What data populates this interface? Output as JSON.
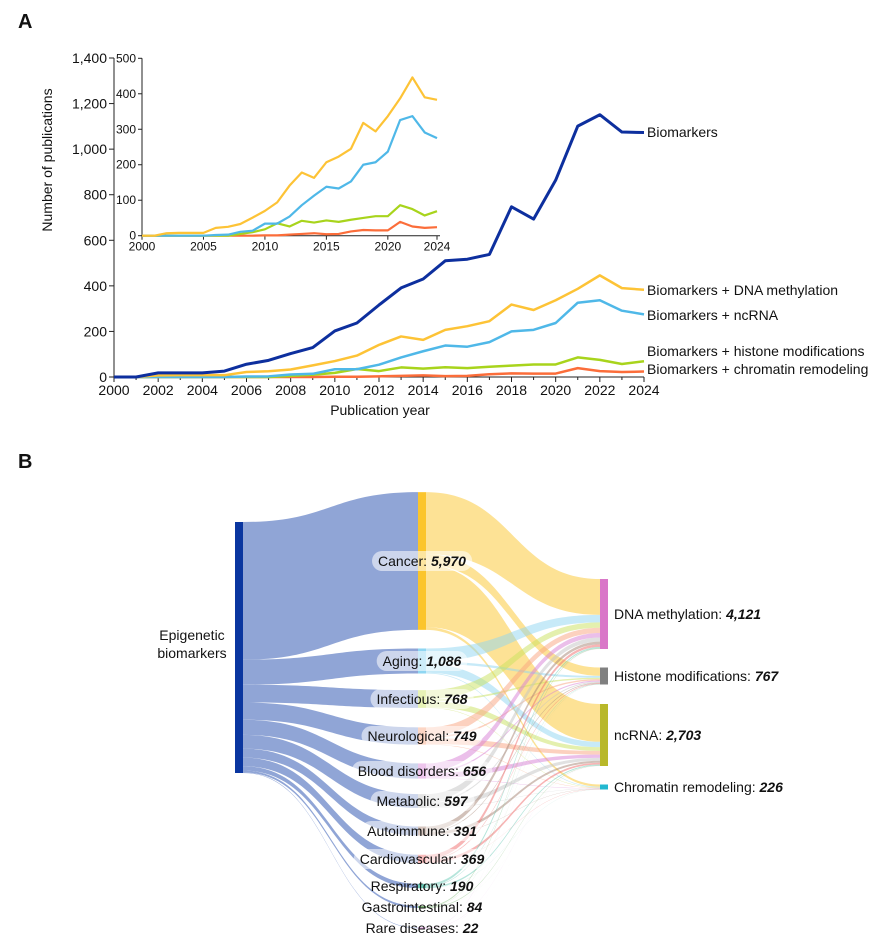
{
  "panels": {
    "a": "A",
    "b": "B"
  },
  "chart_data": [
    {
      "type": "line",
      "panel": "A",
      "xlabel": "Publication year",
      "ylabel": "Number of publications",
      "xlim": [
        2000,
        2024
      ],
      "ylim": [
        0,
        1400
      ],
      "x_ticks": [
        2000,
        2002,
        2004,
        2006,
        2008,
        2010,
        2012,
        2014,
        2016,
        2018,
        2020,
        2022,
        2024
      ],
      "y_ticks": [
        0,
        200,
        400,
        600,
        800,
        1000,
        1200,
        1400
      ],
      "y_tick_labels": [
        "0",
        "200",
        "400",
        "600",
        "800",
        "1,000",
        "1,200",
        "1,400"
      ],
      "grid": false,
      "legend": "direct labels at line ends (right)",
      "x": [
        2000,
        2001,
        2002,
        2003,
        2004,
        2005,
        2006,
        2007,
        2008,
        2009,
        2010,
        2011,
        2012,
        2013,
        2014,
        2015,
        2016,
        2017,
        2018,
        2019,
        2020,
        2021,
        2022,
        2023,
        2024
      ],
      "series": [
        {
          "name": "Biomarkers",
          "color": "#0d2f9e",
          "values": [
            0,
            0,
            18,
            18,
            18,
            26,
            56,
            73,
            103,
            129,
            202,
            237,
            316,
            391,
            430,
            510,
            517,
            538,
            747,
            693,
            864,
            1101,
            1151,
            1075,
            1073
          ]
        },
        {
          "name": "Biomarkers + DNA methylation",
          "color": "#fdc336",
          "values": [
            0,
            0,
            7,
            8,
            8,
            8,
            22,
            25,
            33,
            51,
            70,
            94,
            141,
            178,
            163,
            207,
            223,
            245,
            318,
            294,
            337,
            387,
            446,
            390,
            383
          ]
        },
        {
          "name": "Biomarkers + ncRNA",
          "color": "#4fb8e8",
          "values": [
            0,
            0,
            0,
            0,
            0,
            0,
            2,
            3,
            11,
            14,
            34,
            34,
            54,
            86,
            113,
            138,
            133,
            153,
            200,
            207,
            237,
            326,
            337,
            291,
            275
          ]
        },
        {
          "name": "Biomarkers + histone modifications",
          "color": "#a8d41c",
          "values": [
            0,
            0,
            0,
            0,
            0,
            0,
            0,
            0,
            5,
            10,
            18,
            35,
            26,
            42,
            37,
            43,
            39,
            45,
            50,
            55,
            55,
            86,
            75,
            57,
            69
          ]
        },
        {
          "name": "Biomarkers + chromatin remodeling",
          "color": "#fb6d3a",
          "values": [
            0,
            0,
            0,
            0,
            0,
            0,
            0,
            0,
            0,
            0,
            1,
            1,
            3,
            5,
            7,
            4,
            5,
            12,
            16,
            15,
            15,
            39,
            26,
            22,
            24
          ]
        }
      ],
      "inset": {
        "xlim": [
          2000,
          2024
        ],
        "ylim": [
          0,
          500
        ],
        "x_ticks": [
          2000,
          2005,
          2010,
          2015,
          2020,
          2024
        ],
        "y_ticks": [
          0,
          100,
          200,
          300,
          400,
          500
        ],
        "series_shown": [
          "Biomarkers + DNA methylation",
          "Biomarkers + ncRNA",
          "Biomarkers + histone modifications",
          "Biomarkers + chromatin remodeling"
        ]
      }
    },
    {
      "type": "sankey",
      "panel": "B",
      "source": {
        "name": "Epigenetic biomarkers",
        "lines": [
          "Epigenetic",
          "biomarkers"
        ],
        "color": "#0a36a0",
        "link_color": "#8aa0d4"
      },
      "categories": [
        {
          "name": "Cancer",
          "value": 5970,
          "color": "#fbc52c"
        },
        {
          "name": "Aging",
          "value": 1086,
          "color": "#8fd6f2"
        },
        {
          "name": "Infectious",
          "value": 768,
          "color": "#c9e25e"
        },
        {
          "name": "Neurological",
          "value": 749,
          "color": "#f9a47f"
        },
        {
          "name": "Blood disorders",
          "value": 656,
          "color": "#d77fd6"
        },
        {
          "name": "Metabolic",
          "value": 597,
          "color": "#c4c4c4"
        },
        {
          "name": "Autoimmune",
          "value": 391,
          "color": "#a68474"
        },
        {
          "name": "Cardiovascular",
          "value": 369,
          "color": "#ef6b6b"
        },
        {
          "name": "Respiratory",
          "value": 190,
          "color": "#6ccbb8"
        },
        {
          "name": "Gastrointestinal",
          "value": 84,
          "color": "#86c07e"
        },
        {
          "name": "Rare diseases",
          "value": 22,
          "color": "#eaa6ea"
        }
      ],
      "targets": [
        {
          "name": "DNA methylation",
          "value": 4121,
          "color": "#d977c8"
        },
        {
          "name": "Histone modifications",
          "value": 767,
          "color": "#808080"
        },
        {
          "name": "ncRNA",
          "value": 2703,
          "color": "#b8b82a"
        },
        {
          "name": "Chromatin remodeling",
          "value": 226,
          "color": "#22b8d0"
        }
      ],
      "link_shares_estimated": {
        "Cancer": [
          0.45,
          0.08,
          0.45,
          0.02
        ],
        "default": [
          0.52,
          0.1,
          0.35,
          0.03
        ]
      }
    }
  ]
}
